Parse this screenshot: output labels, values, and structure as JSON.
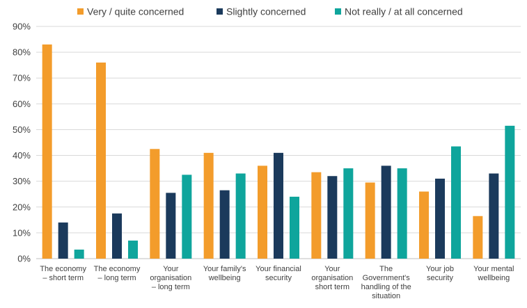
{
  "chart_data": {
    "type": "bar",
    "title": "",
    "xlabel": "",
    "ylabel": "",
    "ylim": [
      0,
      90
    ],
    "yticks": [
      0,
      10,
      20,
      30,
      40,
      50,
      60,
      70,
      80,
      90
    ],
    "ytick_suffix": "%",
    "grid": true,
    "legend_position": "top",
    "categories": [
      [
        "The economy",
        "– short term"
      ],
      [
        "The economy",
        "– long term"
      ],
      [
        "Your",
        "organisation",
        "– long term"
      ],
      [
        "Your family's",
        "wellbeing"
      ],
      [
        "Your financial",
        "security"
      ],
      [
        "Your",
        "organisation",
        "short term"
      ],
      [
        "The",
        "Government's",
        "handling of the",
        "situation"
      ],
      [
        "Your job",
        "security"
      ],
      [
        "Your mental",
        "wellbeing"
      ]
    ],
    "series": [
      {
        "name": "Very / quite concerned",
        "color": "#F39C2B",
        "values": [
          83,
          76,
          42.5,
          41,
          36,
          33.5,
          29.5,
          26,
          16.5
        ]
      },
      {
        "name": "Slightly concerned",
        "color": "#1B3A5C",
        "values": [
          14,
          17.5,
          25.5,
          26.5,
          41,
          32,
          36,
          31,
          33
        ]
      },
      {
        "name": "Not really / at all concerned",
        "color": "#0FA59C",
        "values": [
          3.5,
          7,
          32.5,
          33,
          24,
          35,
          35,
          43.5,
          51.5
        ]
      }
    ]
  }
}
